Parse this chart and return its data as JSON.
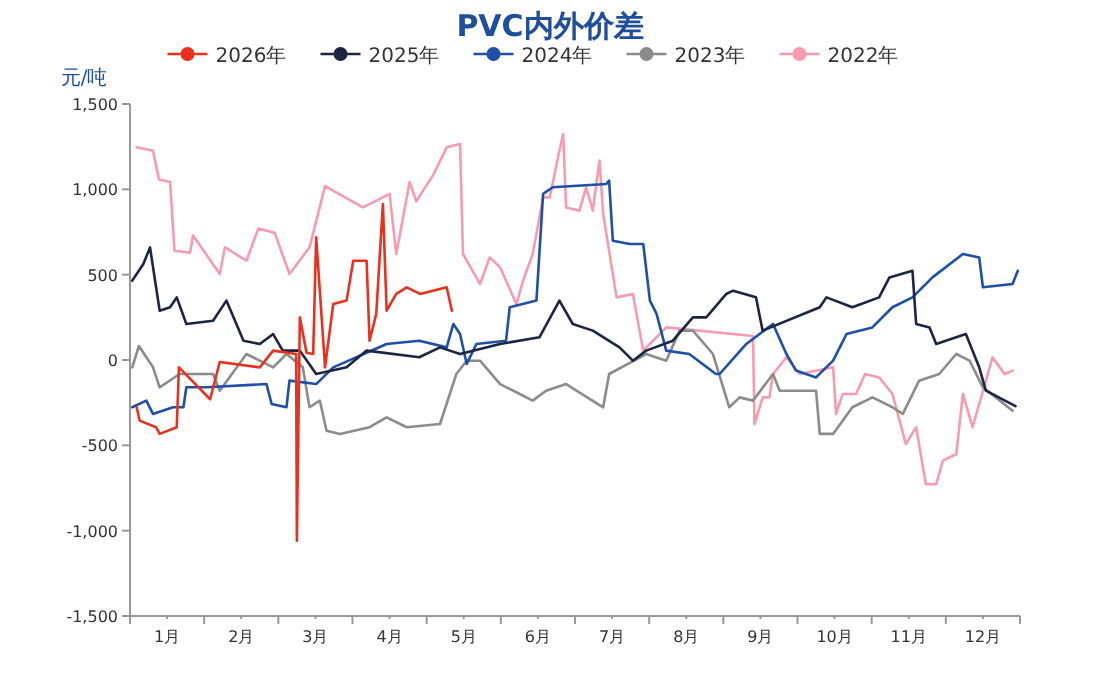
{
  "chart_data": {
    "type": "line",
    "title": "PVC内外价差",
    "ylabel": "元/吨",
    "legend": "top",
    "grid": false,
    "marker": "none",
    "line_style": "solid",
    "xlim": [
      0,
      12
    ],
    "ylim": [
      -1500,
      1500
    ],
    "xticks": [
      {
        "value": 0,
        "label": null
      },
      {
        "value": 0.5,
        "label": "1月"
      },
      {
        "value": 1,
        "label": null
      },
      {
        "value": 1.5,
        "label": "2月"
      },
      {
        "value": 2,
        "label": null
      },
      {
        "value": 2.5,
        "label": "3月"
      },
      {
        "value": 3,
        "label": null
      },
      {
        "value": 3.5,
        "label": "4月"
      },
      {
        "value": 4,
        "label": null
      },
      {
        "value": 4.5,
        "label": "5月"
      },
      {
        "value": 5,
        "label": null
      },
      {
        "value": 5.5,
        "label": "6月"
      },
      {
        "value": 6,
        "label": null
      },
      {
        "value": 6.5,
        "label": "7月"
      },
      {
        "value": 7,
        "label": null
      },
      {
        "value": 7.5,
        "label": "8月"
      },
      {
        "value": 8,
        "label": null
      },
      {
        "value": 8.5,
        "label": "9月"
      },
      {
        "value": 9,
        "label": null
      },
      {
        "value": 9.5,
        "label": "10月"
      },
      {
        "value": 10,
        "label": null
      },
      {
        "value": 10.5,
        "label": "11月"
      },
      {
        "value": 11,
        "label": null
      },
      {
        "value": 11.5,
        "label": "12月"
      },
      {
        "value": 12,
        "label": null
      }
    ],
    "yticks": [
      {
        "value": -1500,
        "label": "-1,500"
      },
      {
        "value": -1000,
        "label": "-1,000"
      },
      -500,
      0,
      500,
      {
        "value": 1000,
        "label": "1,000"
      },
      {
        "value": 1500,
        "label": "1,500"
      }
    ],
    "series": [
      {
        "name": "2026年",
        "color": "#e8321f",
        "x": [
          0.09,
          0.13,
          0.35,
          0.4,
          0.63,
          0.66,
          1.08,
          1.21,
          1.75,
          1.93,
          2.24,
          2.25,
          2.29,
          2.38,
          2.47,
          2.51,
          2.63,
          2.74,
          2.92,
          3.01,
          3.19,
          3.23,
          3.32,
          3.41,
          3.46,
          3.59,
          3.73,
          3.91,
          4.27,
          4.34
        ],
        "values": [
          -277,
          -355,
          -394,
          -433,
          -394,
          -43,
          -230,
          -12,
          -43,
          55,
          35,
          -1059,
          250,
          43,
          35,
          719,
          -43,
          328,
          348,
          582,
          582,
          113,
          270,
          914,
          289,
          387,
          426,
          387,
          426,
          289
        ]
      },
      {
        "name": "2025年",
        "color": "#1c2541",
        "x": [
          0.03,
          0.18,
          0.27,
          0.4,
          0.54,
          0.63,
          0.76,
          1.12,
          1.3,
          1.53,
          1.75,
          1.93,
          2.06,
          2.29,
          2.51,
          2.92,
          3.19,
          3.9,
          4.18,
          4.45,
          4.99,
          5.52,
          5.79,
          5.97,
          6.24,
          6.6,
          6.78,
          6.96,
          7.32,
          7.59,
          7.77,
          8.04,
          8.13,
          8.44,
          8.53,
          9.3,
          9.39,
          9.74,
          10.1,
          10.24,
          10.55,
          10.6,
          10.78,
          10.87,
          11.27,
          11.45,
          11.54,
          11.94
        ],
        "values": [
          465,
          562,
          660,
          289,
          309,
          367,
          211,
          230,
          348,
          113,
          94,
          152,
          55,
          55,
          -82,
          -43,
          55,
          16,
          74,
          35,
          94,
          133,
          348,
          211,
          172,
          74,
          -4,
          55,
          113,
          250,
          250,
          387,
          406,
          367,
          172,
          309,
          367,
          309,
          367,
          484,
          523,
          211,
          191,
          94,
          152,
          -43,
          -180,
          -270
        ]
      },
      {
        "name": "2024年",
        "color": "#1f4fa8",
        "x": [
          0.03,
          0.22,
          0.31,
          0.58,
          0.72,
          0.76,
          1.03,
          1.84,
          1.91,
          2.11,
          2.15,
          2.51,
          2.74,
          3.46,
          3.9,
          4.27,
          4.36,
          4.45,
          4.54,
          4.67,
          5.07,
          5.12,
          5.48,
          5.57,
          5.7,
          6.42,
          6.46,
          6.51,
          6.74,
          6.92,
          7.01,
          7.1,
          7.23,
          7.54,
          7.9,
          7.95,
          8.31,
          8.67,
          8.85,
          8.98,
          9.25,
          9.48,
          9.66,
          10.01,
          10.28,
          10.55,
          10.82,
          11.23,
          11.45,
          11.5,
          11.9,
          11.97
        ],
        "values": [
          -277,
          -238,
          -316,
          -277,
          -277,
          -160,
          -160,
          -141,
          -258,
          -277,
          -121,
          -141,
          -43,
          94,
          113,
          74,
          211,
          152,
          -23,
          94,
          113,
          309,
          348,
          973,
          1012,
          1031,
          1051,
          699,
          680,
          680,
          348,
          270,
          55,
          35,
          -82,
          -82,
          94,
          211,
          35,
          -62,
          -102,
          -4,
          152,
          191,
          309,
          367,
          484,
          621,
          601,
          426,
          445,
          523
        ]
      },
      {
        "name": "2023年",
        "color": "#8c8c8c",
        "x": [
          0.03,
          0.12,
          0.31,
          0.4,
          0.67,
          1.12,
          1.21,
          1.57,
          1.75,
          1.93,
          2.11,
          2.33,
          2.42,
          2.56,
          2.65,
          2.83,
          3.23,
          3.46,
          3.73,
          4.18,
          4.4,
          4.54,
          4.72,
          4.99,
          5.43,
          5.61,
          5.88,
          6.38,
          6.46,
          6.96,
          7.23,
          7.41,
          7.59,
          7.86,
          8.08,
          8.22,
          8.4,
          8.67,
          8.76,
          9.25,
          9.3,
          9.48,
          9.74,
          10.01,
          10.28,
          10.42,
          10.64,
          10.91,
          11.14,
          11.32,
          11.5,
          11.9
        ],
        "values": [
          -43,
          82,
          -43,
          -160,
          -82,
          -82,
          -180,
          35,
          -4,
          -43,
          35,
          -43,
          -277,
          -238,
          -414,
          -433,
          -394,
          -336,
          -394,
          -375,
          -82,
          -4,
          -4,
          -141,
          -238,
          -180,
          -141,
          -277,
          -82,
          35,
          -4,
          172,
          172,
          35,
          -277,
          -219,
          -238,
          -82,
          -180,
          -180,
          -433,
          -433,
          -277,
          -219,
          -277,
          -316,
          -121,
          -82,
          35,
          -4,
          -160,
          -297
        ]
      },
      {
        "name": "2022年",
        "color": "#f79bb0",
        "x": [
          0.09,
          0.31,
          0.39,
          0.54,
          0.6,
          0.81,
          0.85,
          1.21,
          1.28,
          1.57,
          1.73,
          1.95,
          2.15,
          2.42,
          2.63,
          3.14,
          3.5,
          3.59,
          3.77,
          3.86,
          4.09,
          4.27,
          4.45,
          4.49,
          4.72,
          4.85,
          4.99,
          5.21,
          5.3,
          5.43,
          5.57,
          5.66,
          5.78,
          5.84,
          5.88,
          6.06,
          6.15,
          6.24,
          6.33,
          6.38,
          6.56,
          6.78,
          6.92,
          7.23,
          8.4,
          8.42,
          8.53,
          8.62,
          8.67,
          8.85,
          9.03,
          9.48,
          9.52,
          9.61,
          9.79,
          9.91,
          10.1,
          10.28,
          10.46,
          10.6,
          10.73,
          10.87,
          10.96,
          11.14,
          11.23,
          11.36,
          11.63,
          11.79,
          11.9
        ],
        "values": [
          1246,
          1226,
          1058,
          1043,
          640,
          629,
          730,
          504,
          660,
          582,
          770,
          746,
          504,
          660,
          1019,
          894,
          973,
          621,
          1043,
          930,
          1086,
          1246,
          1266,
          621,
          445,
          601,
          543,
          328,
          465,
          621,
          953,
          953,
          1207,
          1324,
          894,
          875,
          1012,
          875,
          1168,
          855,
          367,
          387,
          55,
          191,
          141,
          -375,
          -219,
          -219,
          -82,
          16,
          -82,
          -43,
          -316,
          -199,
          -199,
          -82,
          -102,
          -199,
          -492,
          -394,
          -727,
          -727,
          -590,
          -551,
          -199,
          -394,
          16,
          -82,
          -62
        ]
      }
    ]
  }
}
